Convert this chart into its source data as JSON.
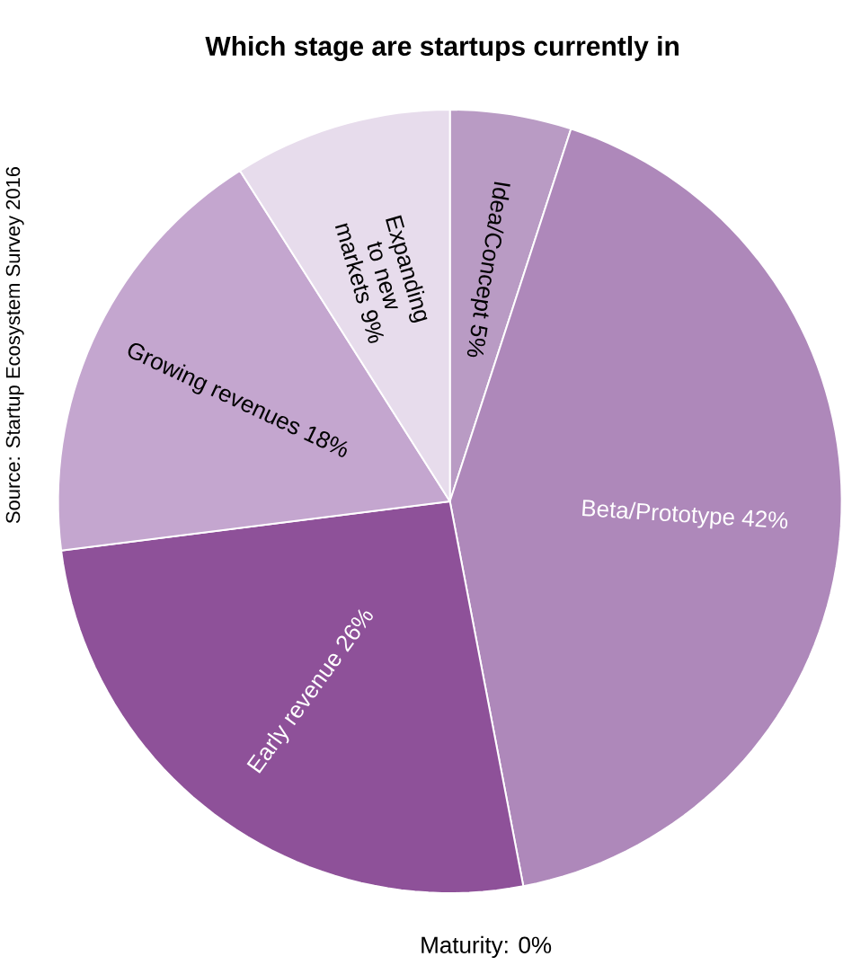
{
  "chart_data": {
    "type": "pie",
    "title": "Which stage are startups currently in",
    "categories": [
      "Idea/Concept",
      "Beta/Prototype",
      "Early revenue",
      "Growing revenues",
      "Expanding to new markets",
      "Maturity"
    ],
    "values": [
      5,
      42,
      26,
      18,
      9,
      0
    ],
    "value_labels": [
      "5%",
      "42%",
      "26%",
      "18%",
      "9%",
      ": 0%"
    ],
    "colors": [
      "#b99bc4",
      "#ae88ba",
      "#8e5199",
      "#c4a6cf",
      "#e7dcec",
      "#d9c6df"
    ],
    "annotations": [
      "Source: Startup Ecosystem Survey 2016"
    ]
  }
}
